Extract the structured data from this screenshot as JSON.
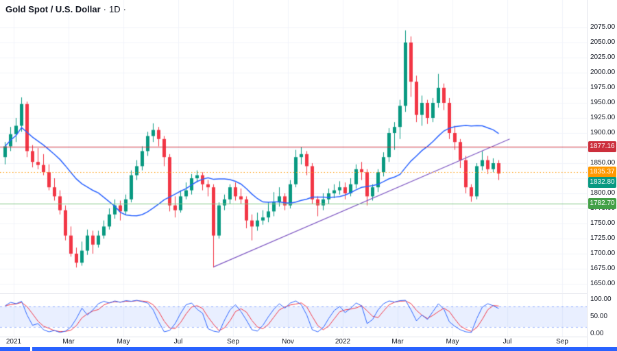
{
  "header": {
    "symbol": "Gold Spot / U.S. Dollar",
    "separator": "·",
    "interval": "1D",
    "suffix": "·"
  },
  "colors": {
    "background": "#ffffff",
    "grid": "#f0f3fa",
    "axis_border": "#e0e3eb",
    "axis_text": "#131722",
    "candle_up": "#089981",
    "candle_down": "#f23645",
    "ma_line": "#2962ff",
    "trendline": "#7e57c2",
    "osc_k": "#2962ff",
    "osc_d": "#f23645",
    "osc_band_fill": "rgba(41,98,255,0.10)",
    "osc_band_border": "rgba(41,98,255,0.45)",
    "bottom_bar": "#2962ff"
  },
  "chart_data": {
    "type": "candlestick",
    "title": "Gold Spot / U.S. Dollar",
    "interval": "1D",
    "price_range": [
      1650,
      2075
    ],
    "price_axis": {
      "ticks": [
        "2075.00",
        "2050.00",
        "2025.00",
        "2000.00",
        "1975.00",
        "1950.00",
        "1925.00",
        "1900.00",
        "1875.00",
        "1850.00",
        "1825.00",
        "1800.00",
        "1775.00",
        "1750.00",
        "1725.00",
        "1700.00",
        "1675.00",
        "1650.00"
      ],
      "step": 25
    },
    "time_axis": {
      "labels": [
        {
          "text": "2021",
          "bar": 2
        },
        {
          "text": "Mar",
          "bar": 12
        },
        {
          "text": "May",
          "bar": 22
        },
        {
          "text": "Jul",
          "bar": 32
        },
        {
          "text": "Sep",
          "bar": 42
        },
        {
          "text": "Nov",
          "bar": 52
        },
        {
          "text": "2022",
          "bar": 62
        },
        {
          "text": "Mar",
          "bar": 72
        },
        {
          "text": "May",
          "bar": 82
        },
        {
          "text": "Jul",
          "bar": 92
        },
        {
          "text": "Sep",
          "bar": 102
        }
      ]
    },
    "candles_ohlc": [
      [
        1860,
        1885,
        1848,
        1878
      ],
      [
        1878,
        1910,
        1870,
        1898
      ],
      [
        1898,
        1925,
        1885,
        1912
      ],
      [
        1912,
        1959,
        1902,
        1948
      ],
      [
        1948,
        1952,
        1860,
        1870
      ],
      [
        1870,
        1880,
        1843,
        1852
      ],
      [
        1852,
        1875,
        1840,
        1847
      ],
      [
        1847,
        1865,
        1830,
        1835
      ],
      [
        1835,
        1848,
        1805,
        1810
      ],
      [
        1810,
        1825,
        1788,
        1795
      ],
      [
        1795,
        1805,
        1765,
        1772
      ],
      [
        1772,
        1780,
        1722,
        1730
      ],
      [
        1730,
        1745,
        1695,
        1700
      ],
      [
        1700,
        1710,
        1677,
        1685
      ],
      [
        1685,
        1720,
        1680,
        1705
      ],
      [
        1705,
        1740,
        1698,
        1730
      ],
      [
        1730,
        1738,
        1700,
        1715
      ],
      [
        1715,
        1738,
        1710,
        1730
      ],
      [
        1730,
        1755,
        1725,
        1745
      ],
      [
        1745,
        1775,
        1740,
        1765
      ],
      [
        1765,
        1790,
        1758,
        1780
      ],
      [
        1780,
        1788,
        1755,
        1770
      ],
      [
        1770,
        1798,
        1765,
        1790
      ],
      [
        1790,
        1838,
        1785,
        1830
      ],
      [
        1830,
        1855,
        1822,
        1845
      ],
      [
        1845,
        1878,
        1838,
        1870
      ],
      [
        1870,
        1902,
        1862,
        1895
      ],
      [
        1895,
        1916,
        1885,
        1905
      ],
      [
        1905,
        1910,
        1878,
        1890
      ],
      [
        1890,
        1895,
        1845,
        1860
      ],
      [
        1860,
        1865,
        1770,
        1780
      ],
      [
        1780,
        1795,
        1760,
        1772
      ],
      [
        1772,
        1805,
        1768,
        1795
      ],
      [
        1795,
        1818,
        1790,
        1805
      ],
      [
        1805,
        1832,
        1798,
        1825
      ],
      [
        1825,
        1838,
        1818,
        1830
      ],
      [
        1830,
        1835,
        1805,
        1815
      ],
      [
        1815,
        1822,
        1795,
        1810
      ],
      [
        1810,
        1815,
        1677,
        1730
      ],
      [
        1730,
        1785,
        1725,
        1780
      ],
      [
        1780,
        1798,
        1772,
        1790
      ],
      [
        1790,
        1815,
        1782,
        1810
      ],
      [
        1810,
        1818,
        1788,
        1795
      ],
      [
        1795,
        1808,
        1782,
        1790
      ],
      [
        1790,
        1795,
        1742,
        1755
      ],
      [
        1755,
        1765,
        1722,
        1745
      ],
      [
        1745,
        1768,
        1738,
        1755
      ],
      [
        1755,
        1772,
        1748,
        1760
      ],
      [
        1760,
        1785,
        1752,
        1770
      ],
      [
        1770,
        1802,
        1762,
        1785
      ],
      [
        1785,
        1810,
        1778,
        1795
      ],
      [
        1795,
        1800,
        1772,
        1780
      ],
      [
        1780,
        1822,
        1775,
        1815
      ],
      [
        1815,
        1872,
        1810,
        1860
      ],
      [
        1860,
        1877,
        1848,
        1865
      ],
      [
        1865,
        1870,
        1830,
        1845
      ],
      [
        1845,
        1850,
        1782,
        1790
      ],
      [
        1790,
        1795,
        1762,
        1780
      ],
      [
        1780,
        1800,
        1772,
        1790
      ],
      [
        1790,
        1808,
        1782,
        1800
      ],
      [
        1800,
        1815,
        1792,
        1805
      ],
      [
        1805,
        1820,
        1798,
        1810
      ],
      [
        1810,
        1818,
        1790,
        1800
      ],
      [
        1800,
        1825,
        1795,
        1815
      ],
      [
        1815,
        1848,
        1808,
        1840
      ],
      [
        1840,
        1852,
        1822,
        1835
      ],
      [
        1835,
        1840,
        1780,
        1795
      ],
      [
        1795,
        1815,
        1788,
        1810
      ],
      [
        1810,
        1840,
        1802,
        1835
      ],
      [
        1835,
        1868,
        1828,
        1860
      ],
      [
        1860,
        1908,
        1852,
        1900
      ],
      [
        1900,
        1918,
        1872,
        1910
      ],
      [
        1910,
        1955,
        1890,
        1945
      ],
      [
        1945,
        2070,
        1935,
        2050
      ],
      [
        2050,
        2060,
        1960,
        1985
      ],
      [
        1985,
        1995,
        1918,
        1930
      ],
      [
        1930,
        1962,
        1912,
        1950
      ],
      [
        1950,
        1955,
        1915,
        1925
      ],
      [
        1925,
        1958,
        1918,
        1950
      ],
      [
        1950,
        1998,
        1942,
        1975
      ],
      [
        1975,
        1982,
        1938,
        1950
      ],
      [
        1950,
        1958,
        1890,
        1900
      ],
      [
        1900,
        1912,
        1872,
        1885
      ],
      [
        1885,
        1890,
        1842,
        1855
      ],
      [
        1855,
        1862,
        1800,
        1810
      ],
      [
        1810,
        1815,
        1786,
        1795
      ],
      [
        1795,
        1850,
        1790,
        1845
      ],
      [
        1845,
        1870,
        1838,
        1855
      ],
      [
        1855,
        1862,
        1832,
        1840
      ],
      [
        1840,
        1858,
        1835,
        1850
      ],
      [
        1850,
        1855,
        1822,
        1832.8
      ]
    ],
    "moving_average": {
      "window_bars": 18,
      "color": "#2962ff"
    },
    "trendline": {
      "from_bar": 38,
      "from_price": 1678,
      "to_bar": 92,
      "to_price": 1890,
      "color": "#7e57c2"
    },
    "horizontal_lines": [
      {
        "label": "1877.16",
        "price": 1877.16,
        "color": "#cc2f3c",
        "label_bg": "#cc2f3c",
        "style": "solid",
        "name": "resistance-line"
      },
      {
        "label": "1835.37",
        "price": 1835.37,
        "color": "#ff9800",
        "label_bg": "#ff9800",
        "style": "dotted",
        "name": "pivot-line"
      },
      {
        "label": "1782.70",
        "price": 1782.7,
        "color": "#81c784",
        "label_bg": "#43a047",
        "style": "solid",
        "name": "support-line"
      }
    ],
    "last_price_label": {
      "label": "1832.80",
      "price": 1832.8,
      "label_bg": "#089981"
    },
    "oscillator": {
      "type": "stochastic",
      "range": [
        0,
        100
      ],
      "bands": [
        20,
        80
      ],
      "axis_ticks": [
        "100.00",
        "50.00",
        "0.00"
      ],
      "k_values": [
        82,
        92,
        88,
        95,
        55,
        25,
        30,
        12,
        6,
        10,
        4,
        8,
        20,
        45,
        75,
        55,
        70,
        88,
        95,
        90,
        96,
        92,
        97,
        95,
        98,
        94,
        90,
        70,
        35,
        6,
        10,
        30,
        60,
        85,
        90,
        72,
        60,
        15,
        8,
        5,
        40,
        70,
        85,
        65,
        40,
        12,
        8,
        25,
        50,
        72,
        88,
        75,
        90,
        96,
        85,
        55,
        12,
        6,
        18,
        45,
        68,
        80,
        62,
        75,
        90,
        82,
        30,
        42,
        70,
        88,
        96,
        93,
        97,
        98,
        70,
        38,
        55,
        42,
        65,
        88,
        72,
        35,
        22,
        12,
        6,
        4,
        45,
        78,
        88,
        82,
        74
      ],
      "d_smoothing": 3
    }
  }
}
